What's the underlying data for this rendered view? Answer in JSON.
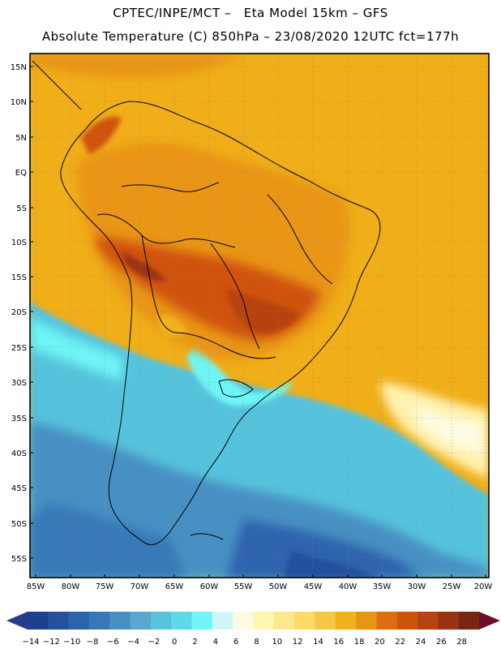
{
  "header": {
    "title_line1": "CPTEC/INPE/MCT –   Eta Model 15km – GFS",
    "title_line2": "Absolute Temperature (C) 850hPa – 23/08/2020 12UTC fct=177h"
  },
  "map": {
    "lat_labels": [
      "15N",
      "10N",
      "5N",
      "EQ",
      "5S",
      "10S",
      "15S",
      "20S",
      "25S",
      "30S",
      "35S",
      "40S",
      "45S",
      "50S",
      "55S"
    ],
    "lon_labels": [
      "85W",
      "80W",
      "75W",
      "70W",
      "65W",
      "60W",
      "55W",
      "50W",
      "45W",
      "40W",
      "35W",
      "30W",
      "25W",
      "20W"
    ]
  },
  "colorbar": {
    "labels": [
      "-14",
      "-12",
      "-10",
      "-8",
      "-6",
      "-4",
      "-2",
      "0",
      "2",
      "4",
      "6",
      "8",
      "10",
      "12",
      "14",
      "16",
      "18",
      "20",
      "22",
      "24",
      "26",
      "28"
    ],
    "colors": [
      "#1f3f8f",
      "#24509e",
      "#2d63ad",
      "#3779b8",
      "#4790c3",
      "#58a8cf",
      "#57c3dc",
      "#5bdbe8",
      "#6ef5f5",
      "#cff6fb",
      "#fffbe3",
      "#fff7b1",
      "#fde98a",
      "#fbdb65",
      "#f6c744",
      "#f1b31a",
      "#e99514",
      "#e06d0c",
      "#d0530a",
      "#b84310",
      "#9a3312",
      "#7a2412"
    ],
    "low_arrow_color": "#2a3a8c",
    "high_arrow_color": "#6d0f2a"
  }
}
